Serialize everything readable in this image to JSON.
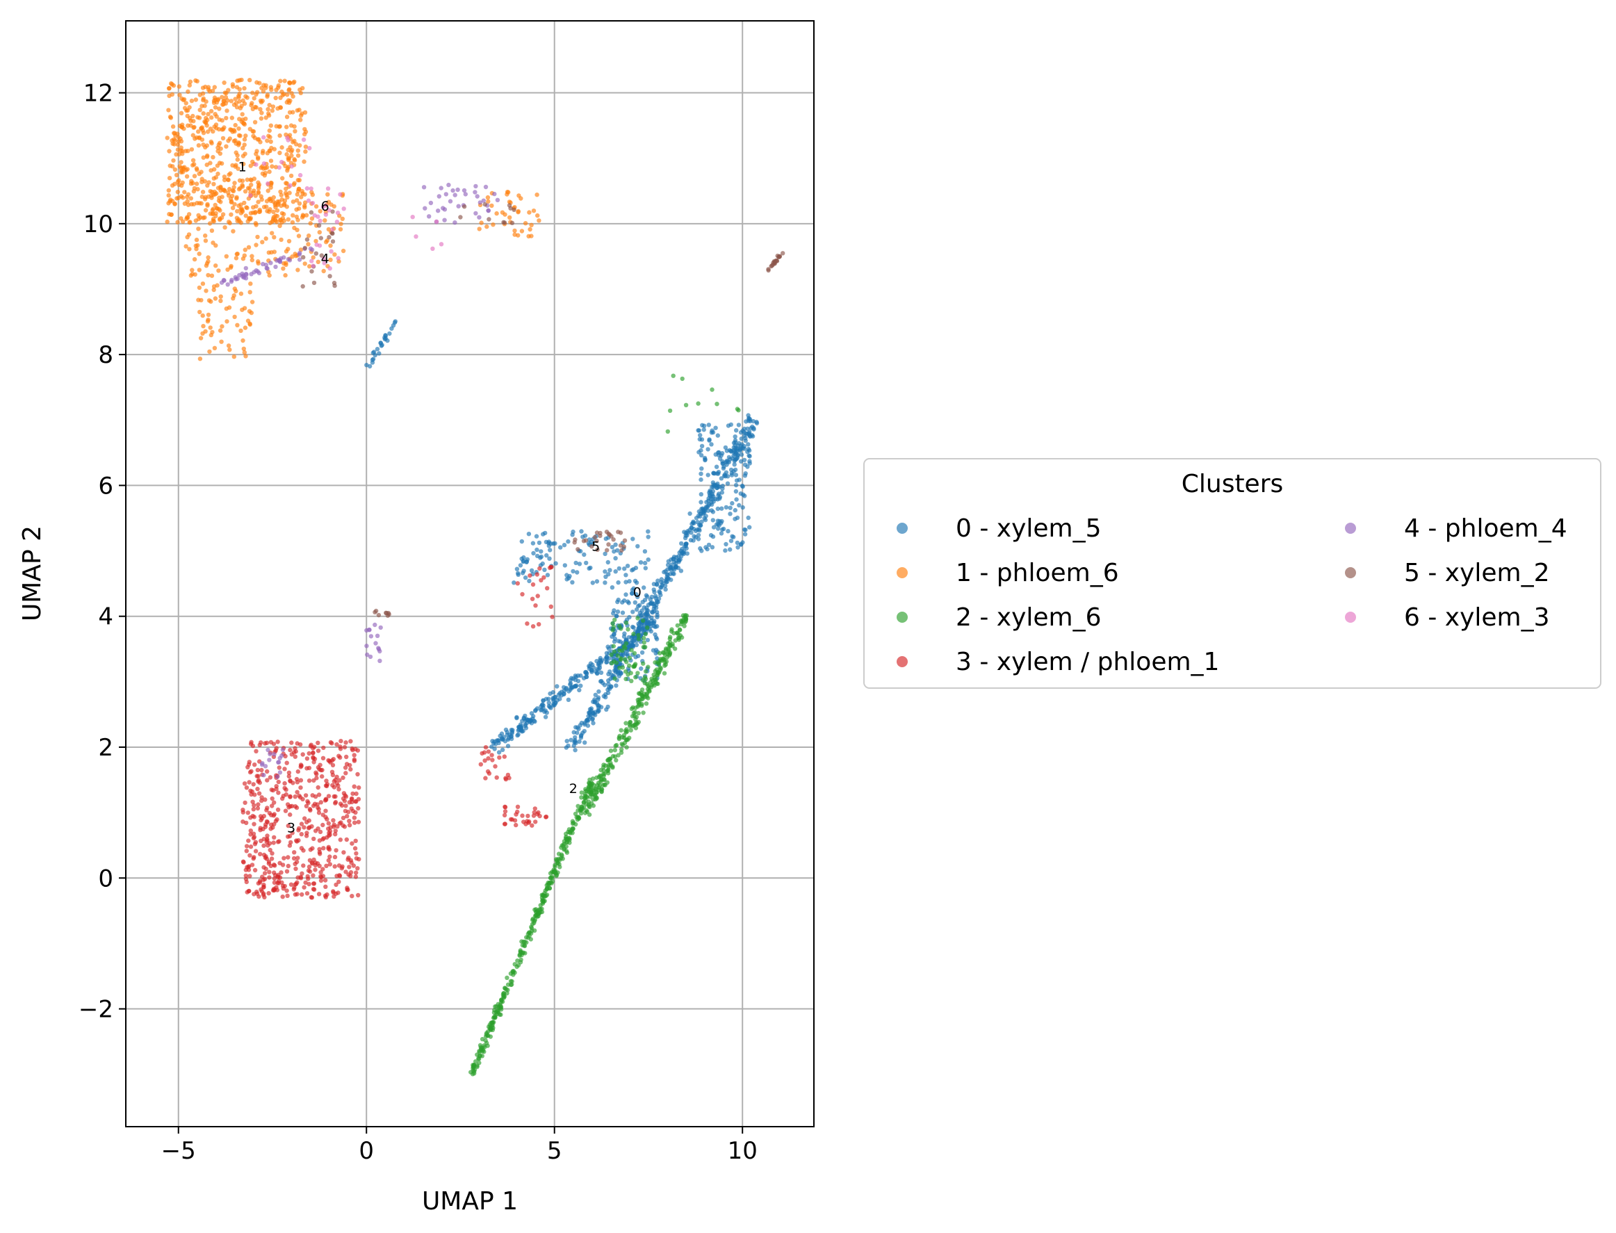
{
  "chart_data": {
    "type": "scatter",
    "title": "",
    "xlabel": "UMAP 1",
    "ylabel": "UMAP 2",
    "xlim": [
      -6.4,
      11.9
    ],
    "ylim": [
      -3.8,
      13.1
    ],
    "xticks": [
      -5,
      0,
      5,
      10
    ],
    "yticks": [
      -2,
      0,
      2,
      4,
      6,
      8,
      10,
      12
    ],
    "xtick_labels": [
      "−5",
      "0",
      "5",
      "10"
    ],
    "ytick_labels": [
      "−2",
      "0",
      "2",
      "4",
      "6",
      "8",
      "10",
      "12"
    ],
    "grid": true,
    "legend": {
      "title": "Clusters",
      "placement": "right-center",
      "columns": 2
    },
    "series": [
      {
        "id": "0",
        "name": "0 - xylem_5",
        "color": "#1f77b4",
        "label_pos": [
          7.2,
          4.3
        ],
        "regions": [
          {
            "x": [
              5.5,
              10.3
            ],
            "y": [
              2.0,
              7.0
            ],
            "n": 420,
            "band": "diag",
            "spread": 0.25
          },
          {
            "x": [
              3.4,
              7.8
            ],
            "y": [
              2.0,
              4.0
            ],
            "n": 260,
            "band": "diag",
            "spread": 0.2
          },
          {
            "x": [
              3.9,
              7.5
            ],
            "y": [
              4.5,
              5.3
            ],
            "n": 120,
            "band": "box"
          },
          {
            "x": [
              6.5,
              7.8
            ],
            "y": [
              3.0,
              4.5
            ],
            "n": 120,
            "band": "box"
          },
          {
            "x": [
              8.8,
              10.2
            ],
            "y": [
              5.0,
              7.0
            ],
            "n": 160,
            "band": "box"
          },
          {
            "x": [
              0.0,
              0.8
            ],
            "y": [
              7.8,
              8.5
            ],
            "n": 25,
            "band": "diag",
            "spread": 0.1
          }
        ]
      },
      {
        "id": "1",
        "name": "1 - phloem_6",
        "color": "#ff7f0e",
        "label_pos": [
          -3.3,
          10.8
        ],
        "regions": [
          {
            "x": [
              -5.3,
              -1.6
            ],
            "y": [
              10.0,
              12.2
            ],
            "n": 650,
            "band": "box"
          },
          {
            "x": [
              -4.8,
              -0.6
            ],
            "y": [
              9.2,
              10.5
            ],
            "n": 180,
            "band": "box"
          },
          {
            "x": [
              -4.5,
              -3.0
            ],
            "y": [
              7.9,
              9.2
            ],
            "n": 60,
            "band": "box"
          },
          {
            "x": [
              3.0,
              4.6
            ],
            "y": [
              9.8,
              10.5
            ],
            "n": 40,
            "band": "box"
          }
        ]
      },
      {
        "id": "2",
        "name": "2 - xylem_6",
        "color": "#2ca02c",
        "label_pos": [
          5.5,
          1.3
        ],
        "regions": [
          {
            "x": [
              2.8,
              6.0
            ],
            "y": [
              -3.0,
              1.5
            ],
            "n": 320,
            "band": "diag",
            "spread": 0.12
          },
          {
            "x": [
              5.8,
              8.5
            ],
            "y": [
              1.0,
              4.0
            ],
            "n": 260,
            "band": "diag",
            "spread": 0.2
          },
          {
            "x": [
              6.5,
              7.5
            ],
            "y": [
              3.0,
              4.0
            ],
            "n": 60,
            "band": "box"
          },
          {
            "x": [
              8.0,
              10.3
            ],
            "y": [
              6.5,
              7.8
            ],
            "n": 10,
            "band": "box"
          }
        ]
      },
      {
        "id": "3",
        "name": "3 - xylem / phloem_1",
        "color": "#d62728",
        "label_pos": [
          -2.0,
          0.7
        ],
        "regions": [
          {
            "x": [
              -3.3,
              -0.2
            ],
            "y": [
              -0.3,
              2.1
            ],
            "n": 560,
            "band": "box"
          },
          {
            "x": [
              3.6,
              4.8
            ],
            "y": [
              0.8,
              1.1
            ],
            "n": 30,
            "band": "box"
          },
          {
            "x": [
              3.0,
              3.8
            ],
            "y": [
              1.5,
              2.0
            ],
            "n": 20,
            "band": "box"
          },
          {
            "x": [
              4.0,
              5.0
            ],
            "y": [
              3.8,
              4.8
            ],
            "n": 20,
            "band": "box"
          }
        ]
      },
      {
        "id": "4",
        "name": "4 - phloem_4",
        "color": "#9467bd",
        "label_pos": [
          -1.1,
          9.4
        ],
        "regions": [
          {
            "x": [
              -3.8,
              -1.0
            ],
            "y": [
              9.1,
              9.7
            ],
            "n": 45,
            "band": "diag",
            "spread": 0.1
          },
          {
            "x": [
              1.5,
              3.5
            ],
            "y": [
              10.0,
              10.6
            ],
            "n": 35,
            "band": "box"
          },
          {
            "x": [
              0.0,
              0.4
            ],
            "y": [
              3.2,
              3.9
            ],
            "n": 15,
            "band": "box"
          },
          {
            "x": [
              -2.8,
              -2.2
            ],
            "y": [
              1.5,
              2.0
            ],
            "n": 15,
            "band": "box"
          }
        ]
      },
      {
        "id": "5",
        "name": "5 - xylem_2",
        "color": "#8c564b",
        "label_pos": [
          6.1,
          5.0
        ],
        "regions": [
          {
            "x": [
              10.7,
              11.1
            ],
            "y": [
              9.3,
              9.6
            ],
            "n": 20,
            "band": "diag",
            "spread": 0.05
          },
          {
            "x": [
              5.5,
              7.0
            ],
            "y": [
              5.0,
              5.3
            ],
            "n": 25,
            "band": "box"
          },
          {
            "x": [
              -1.8,
              -0.8
            ],
            "y": [
              9.0,
              10.2
            ],
            "n": 20,
            "band": "box"
          },
          {
            "x": [
              0.2,
              0.6
            ],
            "y": [
              4.0,
              4.1
            ],
            "n": 8,
            "band": "box"
          },
          {
            "x": [
              2.0,
              4.0
            ],
            "y": [
              10.0,
              10.3
            ],
            "n": 10,
            "band": "box"
          }
        ]
      },
      {
        "id": "6",
        "name": "6 - xylem_3",
        "color": "#e377c2",
        "label_pos": [
          -1.1,
          10.2
        ],
        "regions": [
          {
            "x": [
              -1.6,
              -0.6
            ],
            "y": [
              9.3,
              10.6
            ],
            "n": 25,
            "band": "box"
          },
          {
            "x": [
              -3.5,
              -1.5
            ],
            "y": [
              10.4,
              11.4
            ],
            "n": 15,
            "band": "box"
          },
          {
            "x": [
              1.2,
              2.0
            ],
            "y": [
              9.5,
              10.2
            ],
            "n": 5,
            "band": "box"
          }
        ]
      }
    ]
  }
}
